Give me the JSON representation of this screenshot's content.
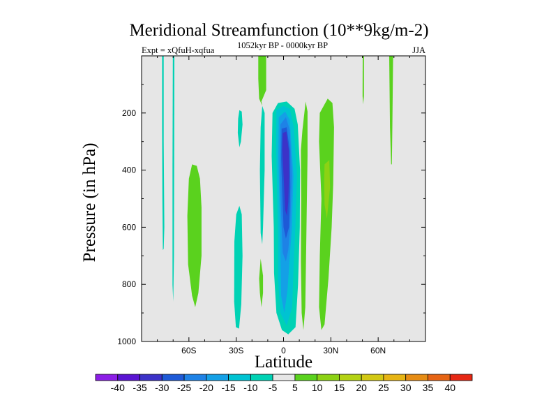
{
  "chart_data": {
    "type": "contour",
    "title": "Meridional Streamfunction (10**9kg/m-2)",
    "left_label": "Expt = xQfuH-xqfua",
    "center_label": "1052kyr BP - 0000kyr BP",
    "right_label": "JJA",
    "xlabel": "Latitude",
    "ylabel": "Pressure (in hPa)",
    "xlim": [
      -90,
      90
    ],
    "ylim": [
      1000,
      0
    ],
    "x_ticks": [
      {
        "value": -60,
        "label": "60S"
      },
      {
        "value": -30,
        "label": "30S"
      },
      {
        "value": 0,
        "label": "0"
      },
      {
        "value": 30,
        "label": "30N"
      },
      {
        "value": 60,
        "label": "60N"
      }
    ],
    "y_ticks": [
      {
        "value": 200,
        "label": "200"
      },
      {
        "value": 400,
        "label": "400"
      },
      {
        "value": 600,
        "label": "600"
      },
      {
        "value": 800,
        "label": "800"
      },
      {
        "value": 1000,
        "label": "1000"
      }
    ],
    "background_color": "#e6e6e6",
    "colorbar": {
      "levels": [
        "-40",
        "-35",
        "-30",
        "-25",
        "-20",
        "-15",
        "-10",
        "-5",
        "5",
        "10",
        "15",
        "20",
        "25",
        "30",
        "35",
        "40"
      ],
      "colors": [
        "#8c1ee6",
        "#5a14d2",
        "#3c32c8",
        "#1e5ad7",
        "#1e82e6",
        "#14a0e6",
        "#00c3d2",
        "#00d2b4",
        "#e6e6e6",
        "#5ad21e",
        "#8cd214",
        "#b4d214",
        "#d2c814",
        "#e6b414",
        "#e68c14",
        "#e66414",
        "#e62814"
      ]
    },
    "regions": [
      {
        "name": "strip-75S",
        "level": "-5",
        "color": "#00d2b4",
        "points": [
          [
            -77,
            0
          ],
          [
            -76,
            0
          ],
          [
            -76,
            300
          ],
          [
            -75.6,
            600
          ],
          [
            -76,
            675
          ],
          [
            -76.5,
            680
          ],
          [
            -76.8,
            500
          ],
          [
            -77,
            250
          ]
        ]
      },
      {
        "name": "strip-70S",
        "level": "-5",
        "color": "#00d2b4",
        "points": [
          [
            -70.2,
            0
          ],
          [
            -69.2,
            0
          ],
          [
            -69.3,
            300
          ],
          [
            -69.5,
            700
          ],
          [
            -69.9,
            860
          ],
          [
            -70.4,
            800
          ],
          [
            -70.4,
            400
          ]
        ]
      },
      {
        "name": "cell-55S",
        "level": "5",
        "color": "#5ad21e",
        "points": [
          [
            -58,
            380
          ],
          [
            -55,
            385
          ],
          [
            -53,
            430
          ],
          [
            -52,
            530
          ],
          [
            -52,
            700
          ],
          [
            -54,
            830
          ],
          [
            -56,
            880
          ],
          [
            -58,
            840
          ],
          [
            -60.5,
            730
          ],
          [
            -61,
            560
          ],
          [
            -60,
            430
          ]
        ]
      },
      {
        "name": "cell-28S-low",
        "level": "-5",
        "color": "#00d2b4",
        "points": [
          [
            -28,
            525
          ],
          [
            -26.5,
            555
          ],
          [
            -26,
            700
          ],
          [
            -26.8,
            870
          ],
          [
            -28.2,
            955
          ],
          [
            -30.2,
            950
          ],
          [
            -31.3,
            860
          ],
          [
            -31.2,
            650
          ],
          [
            -30,
            555
          ]
        ]
      },
      {
        "name": "cell-27S-high",
        "level": "-5",
        "color": "#00d2b4",
        "points": [
          [
            -28,
            190
          ],
          [
            -26.5,
            195
          ],
          [
            -26,
            240
          ],
          [
            -27,
            300
          ],
          [
            -28,
            320
          ],
          [
            -29,
            270
          ],
          [
            -28.8,
            220
          ]
        ]
      },
      {
        "name": "cell-12S-tongue",
        "level": "5",
        "color": "#5ad21e",
        "points": [
          [
            -16,
            0
          ],
          [
            -11,
            0
          ],
          [
            -11,
            120
          ],
          [
            -14,
            160
          ],
          [
            -13.5,
            175
          ],
          [
            -15.5,
            150
          ],
          [
            -16,
            80
          ]
        ]
      },
      {
        "name": "cell-12S-strip",
        "level": "-5",
        "color": "#00d2b4",
        "points": [
          [
            -13.5,
            175
          ],
          [
            -12,
            200
          ],
          [
            -12,
            400
          ],
          [
            -13,
            600
          ],
          [
            -13.5,
            660
          ],
          [
            -14.5,
            620
          ],
          [
            -15,
            400
          ],
          [
            -14.5,
            250
          ]
        ]
      },
      {
        "name": "cell-14S-low",
        "level": "5",
        "color": "#5ad21e",
        "points": [
          [
            -14.5,
            710
          ],
          [
            -13,
            770
          ],
          [
            -13,
            830
          ],
          [
            -14,
            880
          ],
          [
            -15,
            830
          ],
          [
            -15.5,
            780
          ]
        ]
      },
      {
        "name": "eq-minus5",
        "level": "-5",
        "color": "#00d2b4",
        "points": [
          [
            -7,
            200
          ],
          [
            -3.5,
            165
          ],
          [
            2,
            160
          ],
          [
            7,
            185
          ],
          [
            9,
            240
          ],
          [
            10.5,
            400
          ],
          [
            10.3,
            600
          ],
          [
            9.2,
            800
          ],
          [
            7.6,
            950
          ],
          [
            3,
            975
          ],
          [
            -1,
            960
          ],
          [
            -4.5,
            900
          ],
          [
            -6,
            760
          ],
          [
            -6.2,
            600
          ],
          [
            -7.5,
            350
          ]
        ]
      },
      {
        "name": "eq-minus10",
        "level": "-10",
        "color": "#00c3d2",
        "points": [
          [
            -4.5,
            190
          ],
          [
            0,
            175
          ],
          [
            4,
            185
          ],
          [
            6.5,
            250
          ],
          [
            8.5,
            420
          ],
          [
            7.5,
            600
          ],
          [
            6.5,
            720
          ],
          [
            5.5,
            880
          ],
          [
            2,
            945
          ],
          [
            -2,
            900
          ],
          [
            -3.5,
            780
          ],
          [
            -3.4,
            640
          ],
          [
            -4.7,
            320
          ]
        ]
      },
      {
        "name": "eq-minus15",
        "level": "-15",
        "color": "#14a0e6",
        "points": [
          [
            -3,
            215
          ],
          [
            1,
            195
          ],
          [
            4,
            225
          ],
          [
            6.3,
            420
          ],
          [
            5.3,
            600
          ],
          [
            4,
            700
          ],
          [
            2.5,
            820
          ],
          [
            0.5,
            900
          ],
          [
            -1.5,
            840
          ],
          [
            -2,
            700
          ],
          [
            -2.3,
            580
          ],
          [
            -3.3,
            350
          ]
        ]
      },
      {
        "name": "eq-minus20",
        "level": "-20",
        "color": "#1e82e6",
        "points": [
          [
            -2,
            240
          ],
          [
            1.5,
            215
          ],
          [
            4,
            260
          ],
          [
            5.3,
            420
          ],
          [
            4.2,
            600
          ],
          [
            3,
            680
          ],
          [
            1.5,
            720
          ],
          [
            -0.5,
            690
          ],
          [
            -1.2,
            600
          ],
          [
            -2.3,
            420
          ]
        ]
      },
      {
        "name": "eq-minus25",
        "level": "-25",
        "color": "#1e5ad7",
        "points": [
          [
            -1.2,
            255
          ],
          [
            2,
            250
          ],
          [
            4,
            330
          ],
          [
            4.3,
            460
          ],
          [
            3.5,
            600
          ],
          [
            1.5,
            640
          ],
          [
            0,
            600
          ],
          [
            -0.8,
            480
          ],
          [
            -1.5,
            360
          ]
        ]
      },
      {
        "name": "eq-minus30",
        "level": "-30",
        "color": "#3c32c8",
        "points": [
          [
            -0.5,
            270
          ],
          [
            1.8,
            265
          ],
          [
            3.3,
            330
          ],
          [
            3.5,
            420
          ],
          [
            3,
            510
          ],
          [
            2.2,
            560
          ],
          [
            1,
            540
          ],
          [
            0.2,
            440
          ],
          [
            -0.8,
            330
          ]
        ]
      },
      {
        "name": "eq-plus5-east",
        "level": "5",
        "color": "#5ad21e",
        "points": [
          [
            11,
            330
          ],
          [
            12,
            260
          ],
          [
            14,
            160
          ],
          [
            15.2,
            195
          ],
          [
            15.2,
            350
          ],
          [
            14.5,
            620
          ],
          [
            13.8,
            880
          ],
          [
            12.6,
            960
          ],
          [
            11.5,
            900
          ],
          [
            11,
            720
          ],
          [
            11.2,
            500
          ]
        ]
      },
      {
        "name": "cell-25N",
        "level": "5",
        "color": "#5ad21e",
        "points": [
          [
            23,
            200
          ],
          [
            28,
            150
          ],
          [
            31,
            165
          ],
          [
            32,
            250
          ],
          [
            31.5,
            450
          ],
          [
            30.5,
            600
          ],
          [
            28.5,
            780
          ],
          [
            26,
            940
          ],
          [
            24,
            960
          ],
          [
            22.5,
            880
          ],
          [
            23,
            700
          ],
          [
            24,
            500
          ],
          [
            22.5,
            300
          ]
        ]
      },
      {
        "name": "cell-27N-core",
        "level": "10",
        "color": "#8cd214",
        "points": [
          [
            26,
            380
          ],
          [
            29,
            365
          ],
          [
            29.5,
            460
          ],
          [
            27.5,
            570
          ],
          [
            26,
            520
          ],
          [
            25.8,
            440
          ]
        ]
      },
      {
        "name": "strip-50N",
        "level": "5",
        "color": "#5ad21e",
        "points": [
          [
            50.2,
            0
          ],
          [
            51,
            0
          ],
          [
            51,
            140
          ],
          [
            50.5,
            170
          ],
          [
            50.1,
            140
          ]
        ]
      },
      {
        "name": "strip-68N",
        "level": "5",
        "color": "#5ad21e",
        "points": [
          [
            67,
            0
          ],
          [
            69.5,
            0
          ],
          [
            69,
            250
          ],
          [
            68.7,
            380
          ],
          [
            68.2,
            380
          ],
          [
            67.5,
            250
          ]
        ]
      }
    ]
  }
}
